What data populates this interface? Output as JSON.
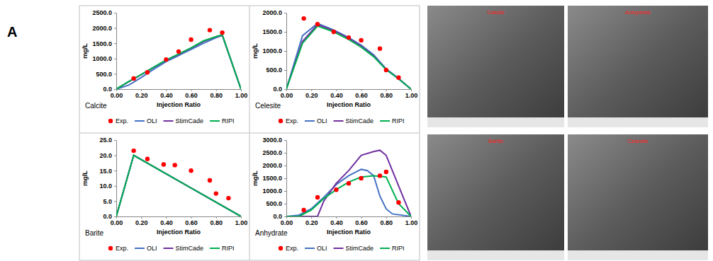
{
  "panel_label": "A",
  "images": [
    {
      "label": "Calcite"
    },
    {
      "label": "Anhydrate"
    },
    {
      "label": "Barite"
    },
    {
      "label": "Celesite"
    }
  ],
  "chart_data": [
    {
      "type": "line",
      "title": "Calcite",
      "x_label": "Injection Ratio",
      "y_label": "mg/L",
      "legend": "bottom",
      "xlim": [
        0,
        1
      ],
      "xticks": [
        {
          "value": 0,
          "label": "0.00"
        },
        {
          "value": 0.2,
          "label": "0.20"
        },
        {
          "value": 0.4,
          "label": "0.40"
        },
        {
          "value": 0.6,
          "label": "0.60"
        },
        {
          "value": 0.8,
          "label": "0.80"
        },
        {
          "value": 1,
          "label": "1.00"
        }
      ],
      "ylim": [
        0,
        2500
      ],
      "yticks": [
        {
          "value": 0,
          "label": "0.0"
        },
        {
          "value": 500,
          "label": "500.0"
        },
        {
          "value": 1000,
          "label": "1000.0"
        },
        {
          "value": 1500,
          "label": "1500.0"
        },
        {
          "value": 2000,
          "label": "2000.0"
        },
        {
          "value": 2500,
          "label": "2500.0"
        }
      ],
      "series": [
        {
          "name": "Exp.",
          "type": "scatter",
          "marker": "circle",
          "color": "#ff0000",
          "x": [
            0.14,
            0.25,
            0.4,
            0.5,
            0.6,
            0.75,
            0.85
          ],
          "values": [
            350,
            550,
            970,
            1230,
            1620,
            1930,
            1850
          ]
        },
        {
          "name": "OLI",
          "type": "line",
          "color": "#4472c4",
          "x": [
            0,
            0.1,
            0.2,
            0.3,
            0.4,
            0.5,
            0.6,
            0.7,
            0.8,
            0.85,
            1.0
          ],
          "values": [
            0,
            130,
            380,
            650,
            900,
            1100,
            1300,
            1500,
            1680,
            1760,
            0
          ]
        },
        {
          "name": "StimCade",
          "type": "line",
          "color": "#7030a0",
          "x": [
            0,
            0.1,
            0.2,
            0.3,
            0.4,
            0.5,
            0.6,
            0.7,
            0.8,
            0.85,
            1.0
          ],
          "values": [
            0,
            240,
            470,
            710,
            940,
            1140,
            1340,
            1560,
            1710,
            1770,
            0
          ]
        },
        {
          "name": "RIPI",
          "type": "line",
          "color": "#00b050",
          "x": [
            0,
            0.1,
            0.2,
            0.3,
            0.4,
            0.5,
            0.6,
            0.7,
            0.8,
            0.85,
            1.0
          ],
          "values": [
            0,
            250,
            480,
            720,
            950,
            1150,
            1350,
            1580,
            1720,
            1780,
            0
          ]
        }
      ]
    },
    {
      "type": "line",
      "title": "Celesite",
      "x_label": "Injection Ratio",
      "y_label": "mg/L",
      "legend": "bottom",
      "xlim": [
        0,
        1
      ],
      "xticks": [
        {
          "value": 0,
          "label": "0.00"
        },
        {
          "value": 0.2,
          "label": "0.20"
        },
        {
          "value": 0.4,
          "label": "0.40"
        },
        {
          "value": 0.6,
          "label": "0.60"
        },
        {
          "value": 0.8,
          "label": "0.80"
        },
        {
          "value": 1,
          "label": "1.00"
        }
      ],
      "ylim": [
        0,
        2000
      ],
      "yticks": [
        {
          "value": 0,
          "label": "0.0"
        },
        {
          "value": 500,
          "label": "500.0"
        },
        {
          "value": 1000,
          "label": "1000.0"
        },
        {
          "value": 1500,
          "label": "1500.0"
        },
        {
          "value": 2000,
          "label": "2000.0"
        }
      ],
      "series": [
        {
          "name": "Exp.",
          "type": "scatter",
          "marker": "circle",
          "color": "#ff0000",
          "x": [
            0.14,
            0.25,
            0.38,
            0.5,
            0.6,
            0.75,
            0.8,
            0.9
          ],
          "values": [
            1850,
            1700,
            1500,
            1350,
            1280,
            1060,
            500,
            300
          ]
        },
        {
          "name": "OLI",
          "type": "line",
          "color": "#4472c4",
          "x": [
            0,
            0.13,
            0.25,
            0.38,
            0.5,
            0.6,
            0.7,
            0.8,
            0.9,
            1.0
          ],
          "values": [
            0,
            1400,
            1720,
            1550,
            1350,
            1150,
            900,
            530,
            280,
            0
          ]
        },
        {
          "name": "StimCade",
          "type": "line",
          "color": "#7030a0",
          "x": [
            0,
            0.13,
            0.25,
            0.38,
            0.5,
            0.6,
            0.7,
            0.8,
            0.9,
            1.0
          ],
          "values": [
            0,
            1250,
            1690,
            1530,
            1330,
            1120,
            870,
            520,
            270,
            0
          ]
        },
        {
          "name": "RIPI",
          "type": "line",
          "color": "#00b050",
          "x": [
            0,
            0.13,
            0.25,
            0.38,
            0.5,
            0.6,
            0.7,
            0.8,
            0.9,
            1.0
          ],
          "values": [
            0,
            1200,
            1650,
            1500,
            1300,
            1100,
            850,
            510,
            270,
            0
          ]
        }
      ]
    },
    {
      "type": "line",
      "title": "Barite",
      "x_label": "Injection Ratio",
      "y_label": "mg/L",
      "legend": "bottom",
      "xlim": [
        0,
        1
      ],
      "xticks": [
        {
          "value": 0,
          "label": "0.00"
        },
        {
          "value": 0.2,
          "label": "0.20"
        },
        {
          "value": 0.4,
          "label": "0.40"
        },
        {
          "value": 0.6,
          "label": "0.60"
        },
        {
          "value": 0.8,
          "label": "0.80"
        },
        {
          "value": 1,
          "label": "1.00"
        }
      ],
      "ylim": [
        0,
        25
      ],
      "yticks": [
        {
          "value": 0,
          "label": "0.0"
        },
        {
          "value": 5,
          "label": "5.0"
        },
        {
          "value": 10,
          "label": "10.0"
        },
        {
          "value": 15,
          "label": "15.0"
        },
        {
          "value": 20,
          "label": "20.0"
        },
        {
          "value": 25,
          "label": "25.0"
        }
      ],
      "series": [
        {
          "name": "Exp.",
          "type": "scatter",
          "marker": "circle",
          "color": "#ff0000",
          "x": [
            0.14,
            0.25,
            0.38,
            0.47,
            0.6,
            0.75,
            0.8,
            0.9
          ],
          "values": [
            21.5,
            18.8,
            17,
            16.8,
            15,
            11.8,
            7.5,
            6
          ]
        },
        {
          "name": "OLI",
          "type": "line",
          "color": "#4472c4",
          "x": [
            0,
            0.14,
            1.0
          ],
          "values": [
            0,
            20,
            0
          ]
        },
        {
          "name": "StimCade",
          "type": "line",
          "color": "#7030a0",
          "x": [
            0,
            0.14,
            1.0
          ],
          "values": [
            0,
            20,
            0
          ]
        },
        {
          "name": "RIPI",
          "type": "line",
          "color": "#00b050",
          "x": [
            0,
            0.14,
            1.0
          ],
          "values": [
            0,
            20,
            0
          ]
        }
      ]
    },
    {
      "type": "line",
      "title": "Anhydrate",
      "x_label": "Injection Ratio",
      "y_label": "mg/L",
      "legend": "bottom",
      "xlim": [
        0,
        1
      ],
      "xticks": [
        {
          "value": 0,
          "label": "0.00"
        },
        {
          "value": 0.2,
          "label": "0.20"
        },
        {
          "value": 0.4,
          "label": "0.40"
        },
        {
          "value": 0.6,
          "label": "0.60"
        },
        {
          "value": 0.8,
          "label": "0.80"
        },
        {
          "value": 1,
          "label": "1.00"
        }
      ],
      "ylim": [
        0,
        3000
      ],
      "yticks": [
        {
          "value": 0,
          "label": "0.0"
        },
        {
          "value": 500,
          "label": "500.0"
        },
        {
          "value": 1000,
          "label": "1000.0"
        },
        {
          "value": 1500,
          "label": "1500.0"
        },
        {
          "value": 2000,
          "label": "2000.0"
        },
        {
          "value": 2500,
          "label": "2500.0"
        },
        {
          "value": 3000,
          "label": "3000.0"
        }
      ],
      "series": [
        {
          "name": "Exp.",
          "type": "scatter",
          "marker": "circle",
          "color": "#ff0000",
          "x": [
            0.14,
            0.25,
            0.4,
            0.5,
            0.6,
            0.75,
            0.8,
            0.9
          ],
          "values": [
            250,
            750,
            1050,
            1300,
            1500,
            1600,
            1750,
            550
          ]
        },
        {
          "name": "OLI",
          "type": "line",
          "color": "#4472c4",
          "x": [
            0,
            0.1,
            0.2,
            0.3,
            0.4,
            0.5,
            0.6,
            0.65,
            0.7,
            0.75,
            0.8,
            0.85,
            1.0
          ],
          "values": [
            0,
            50,
            300,
            750,
            1250,
            1600,
            1850,
            1800,
            1600,
            800,
            300,
            100,
            0
          ]
        },
        {
          "name": "StimCade",
          "type": "line",
          "color": "#7030a0",
          "x": [
            0,
            0.25,
            0.3,
            0.4,
            0.5,
            0.6,
            0.7,
            0.75,
            0.8,
            0.9,
            1.0
          ],
          "values": [
            0,
            0,
            600,
            1300,
            1800,
            2400,
            2550,
            2600,
            2400,
            1200,
            0
          ]
        },
        {
          "name": "RIPI",
          "type": "line",
          "color": "#00b050",
          "x": [
            0,
            0.1,
            0.2,
            0.3,
            0.4,
            0.5,
            0.6,
            0.7,
            0.8,
            0.9,
            1.0
          ],
          "values": [
            0,
            0,
            250,
            700,
            1050,
            1350,
            1550,
            1600,
            1550,
            500,
            0
          ]
        }
      ]
    }
  ]
}
